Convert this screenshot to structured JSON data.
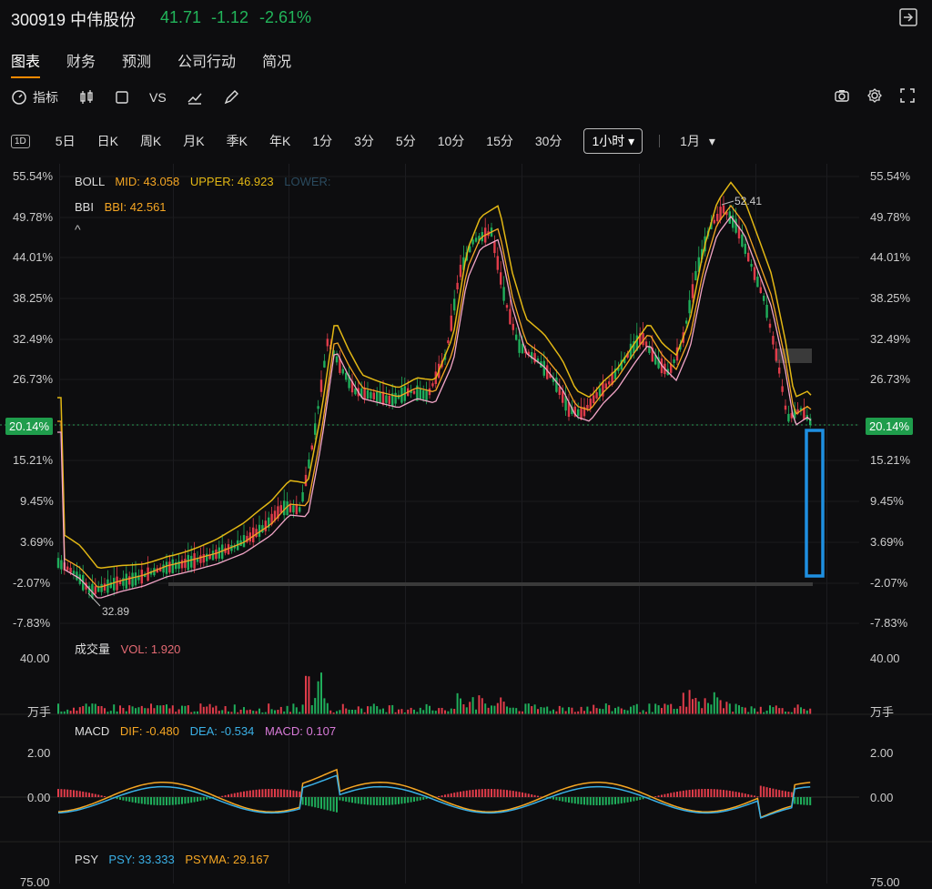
{
  "header": {
    "code": "300919",
    "name": "中伟股份",
    "price": "41.71",
    "change": "-1.12",
    "change_pct": "-2.61%"
  },
  "tabs": [
    "图表",
    "财务",
    "预测",
    "公司行动",
    "简况"
  ],
  "toolbar": {
    "indicator_label": "指标",
    "vs_label": "VS",
    "icons": [
      "gauge-icon",
      "candlestick-icon",
      "square-icon",
      "vs",
      "line-chart-icon",
      "pen-icon"
    ],
    "right_icons": [
      "camera-icon",
      "gear-icon",
      "fullscreen-icon"
    ]
  },
  "periods": {
    "icon_label": "1D",
    "items": [
      "5日",
      "日K",
      "周K",
      "月K",
      "季K",
      "年K",
      "1分",
      "3分",
      "5分",
      "10分",
      "15分",
      "30分"
    ],
    "selected": "1小时",
    "extra": "1月"
  },
  "main_axis": {
    "labels": [
      "55.54%",
      "49.78%",
      "44.01%",
      "38.25%",
      "32.49%",
      "26.73%",
      "20.14%",
      "15.21%",
      "9.45%",
      "3.69%",
      "-2.07%",
      "-7.83%"
    ],
    "current": "20.14%"
  },
  "boll": {
    "name": "BOLL",
    "mid": "MID: 43.058",
    "upper": "UPPER: 46.923",
    "lower": "LOWER:"
  },
  "bbi": {
    "name": "BBI",
    "value": "BBI: 42.561"
  },
  "annotations": {
    "high": "52.41",
    "low": "32.89"
  },
  "volume": {
    "name": "成交量",
    "value": "VOL: 1.920",
    "max": "40.00",
    "unit": "万手"
  },
  "macd": {
    "name": "MACD",
    "dif": "DIF: -0.480",
    "dea": "DEA: -0.534",
    "macd": "MACD: 0.107",
    "top": "2.00",
    "zero": "0.00"
  },
  "psy": {
    "name": "PSY",
    "psy": "PSY: 33.333",
    "psyma": "PSYMA: 29.167",
    "bottom": "75.00"
  },
  "colors": {
    "up": "#e03c4a",
    "down": "#1fae5b",
    "upper": "#e2b714",
    "mid": "#f5a623",
    "lower": "#f3a6c8",
    "accent": "#ff8a00",
    "selection": "#1e8fe0"
  }
}
